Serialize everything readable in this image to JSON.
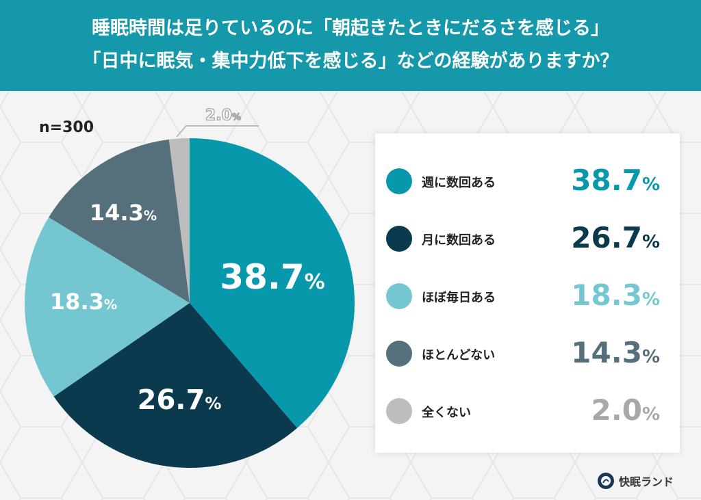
{
  "title": {
    "line1": "睡眠時間は足りているのに「朝起きたときにだるさを感じる」",
    "line2": "「日中に眠気・集中力低下を感じる」などの経験がありますか？"
  },
  "sample": "n=300",
  "brand": "快眠ランド",
  "chart_data": {
    "type": "pie",
    "title": "睡眠時間は足りているのに「朝起きたときにだるさを感じる」「日中に眠気・集中力低下を感じる」などの経験がありますか？",
    "categories": [
      "週に数回ある",
      "月に数回ある",
      "ほぼ毎日ある",
      "ほとんどない",
      "全くない"
    ],
    "values": [
      38.7,
      26.7,
      18.3,
      14.3,
      2.0
    ],
    "labels": [
      "38.7",
      "26.7",
      "18.3",
      "14.3",
      "2.0"
    ],
    "unit": "%",
    "colors": [
      "#0798ac",
      "#0b3a4f",
      "#74c7d1",
      "#556f7b",
      "#bdbdbd"
    ],
    "start": "top",
    "direction": "clockwise",
    "legend": "right"
  }
}
